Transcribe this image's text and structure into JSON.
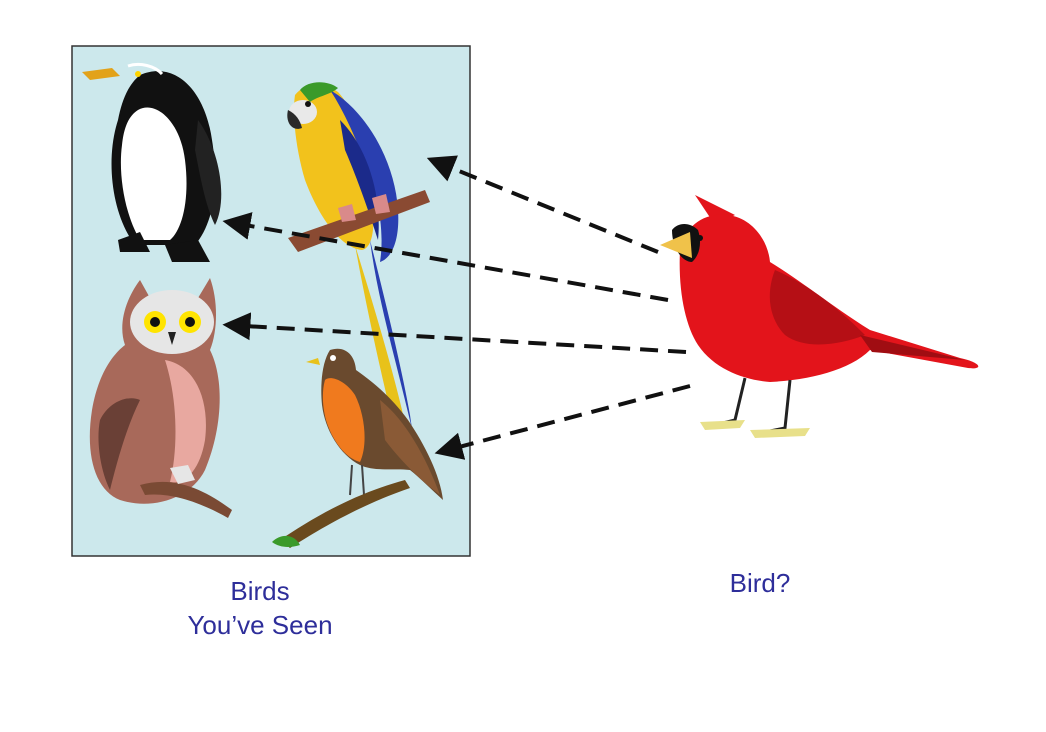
{
  "captions": {
    "known_line1": "Birds",
    "known_line2": "You’ve Seen",
    "query": "Bird?"
  },
  "illustrations": {
    "known_birds": [
      "penguin-icon",
      "macaw-icon",
      "owl-icon",
      "robin-icon"
    ],
    "query_bird": "cardinal-icon"
  },
  "colors": {
    "panel_fill": "#cce8ec",
    "caption_text": "#2e2e9a",
    "arrow": "#111111",
    "cardinal": "#e3141b"
  }
}
